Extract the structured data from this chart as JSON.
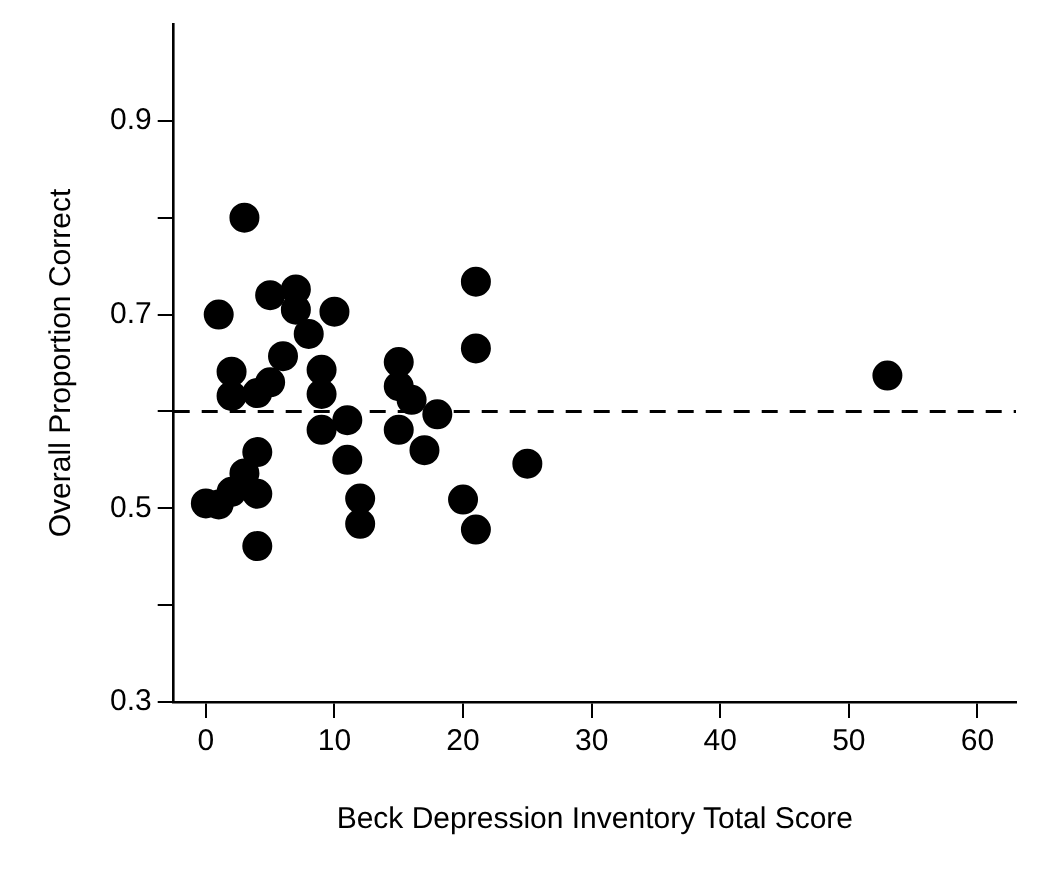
{
  "chart_data": {
    "type": "scatter",
    "xlabel": "Beck Depression Inventory Total Score",
    "ylabel": "Overall Proportion Correct",
    "x": [
      3,
      1,
      5,
      7,
      7,
      10,
      8,
      6,
      2,
      2,
      5,
      4,
      9,
      9,
      15,
      15,
      16,
      18,
      21,
      21,
      9,
      11,
      11,
      15,
      17,
      25,
      4,
      3,
      2,
      4,
      0,
      1,
      12,
      12,
      20,
      21,
      4,
      53
    ],
    "series": [
      {
        "color": "#000000",
        "values": [
          0.8,
          0.7,
          0.72,
          0.726,
          0.705,
          0.703,
          0.68,
          0.657,
          0.641,
          0.616,
          0.63,
          0.619,
          0.643,
          0.618,
          0.651,
          0.626,
          0.612,
          0.597,
          0.734,
          0.665,
          0.581,
          0.591,
          0.55,
          0.581,
          0.56,
          0.546,
          0.558,
          0.536,
          0.517,
          0.515,
          0.505,
          0.504,
          0.51,
          0.484,
          0.509,
          0.478,
          0.461,
          0.637
        ]
      }
    ],
    "xlim": [
      -2.5,
      63
    ],
    "xticks": [
      0,
      10,
      20,
      30,
      40,
      50,
      60
    ],
    "ylim": [
      0.3,
      1.0
    ],
    "yticks": [
      0.3,
      {
        "value": 0.4,
        "label": null
      },
      0.5,
      {
        "value": 0.6,
        "label": null
      },
      0.7,
      {
        "value": 0.8,
        "label": null
      },
      0.9
    ],
    "ref_lines": [
      {
        "axis": "y",
        "value": 0.6,
        "color": "#000000",
        "line_style": "dashed"
      }
    ],
    "marker": "circle",
    "grid": false,
    "legend": false
  }
}
